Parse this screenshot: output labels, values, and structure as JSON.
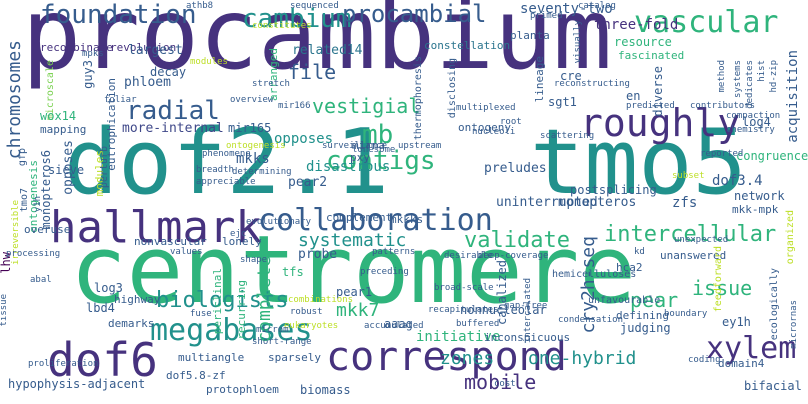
{
  "words": [
    "procambium",
    "dof2.1",
    "tmo5",
    "centromere",
    "correspond",
    "dof6",
    "hallmark",
    "collaboration",
    "roughly",
    "foundation",
    "cambium",
    "procambial",
    "vascular",
    "megabases",
    "biologists",
    "contigs",
    "xylem",
    "validate",
    "intercellular",
    "radial",
    "mb",
    "chromosomes",
    "mobile",
    "issue",
    "complete",
    "systematic",
    "file",
    "vestigial",
    "mkk7",
    "pear",
    "zones",
    "one-hybrid",
    "cry2h-seq",
    "recombinase",
    "revolution",
    "seventy-two",
    "three-fold",
    "resource",
    "fascinated",
    "constellation",
    "related14",
    "largest",
    "phloem",
    "decay",
    "more-internal",
    "wox14",
    "mapping",
    "sieve",
    "monopteros6",
    "mkks",
    "opposes",
    "disastrous",
    "pear2",
    "mir165",
    "preludes",
    "dof3.4",
    "zfs",
    "network",
    "mkk-mpk",
    "congruence",
    "log4",
    "acquisition",
    "sgt1",
    "en",
    "cre",
    "diverse",
    "lineage",
    "planta",
    "probe",
    "complement",
    "mkkks",
    "tfs",
    "hca2",
    "unanswered",
    "log3",
    "lbd4",
    "highway",
    "demarks",
    "multiangle",
    "sparsely",
    "nonnucleolar",
    "initiative",
    "pear1",
    "aaag",
    "judging",
    "defining",
    "ey1h",
    "bifacial",
    "hypophysis-adjacent",
    "dof5.8-zf",
    "protophloem",
    "biomass",
    "domain4",
    "overuse",
    "lonely",
    "nonvascular",
    "eutrophication",
    "tmo7",
    "guy3",
    "monopteros",
    "uninterrupted",
    "canalized",
    "postsplicing",
    "periclinal",
    "recurring",
    "arranged",
    "mirna",
    "pxy",
    "lhw",
    "inconspicuous",
    "hemicelluloses",
    "unfavourable",
    "ontogeny",
    "mpks",
    "foliar",
    "microscale",
    "overview",
    "mir166",
    "surveillance",
    "lonesome",
    "upstream",
    "multiplexed",
    "nucleoli",
    "scattering",
    "chemistry",
    "compaction",
    "predicted",
    "contributors",
    "processing",
    "values",
    "patterns",
    "preceding",
    "broad-scale",
    "intercalated",
    "condensation",
    "boundary",
    "coding",
    "ecologically",
    "organized",
    "micrornas",
    "buffered",
    "recapitulates",
    "eukaryotes",
    "accumulated",
    "short-range",
    "microm",
    "fuse",
    "robust",
    "combinations",
    "evolutionary",
    "ejc",
    "y1h",
    "gfp",
    "perturb",
    "phenomena",
    "breadth",
    "determining",
    "ontogenesis",
    "modules",
    "stretch",
    "athb8",
    "sequenced",
    "catalog",
    "constitutes",
    "thermophoresis",
    "disclosing",
    "reconstructing",
    "desirable",
    "irreversible",
    "deep-coverage",
    "gap-free",
    "feedforward",
    "unexpected",
    "kd",
    "subset",
    "proliferation",
    "abal",
    "cost",
    "shape",
    "primed",
    "root",
    "method",
    "hd-zip",
    "dedicates",
    "hist",
    "systems",
    "visually",
    "appreciable",
    "tissue",
    "reported",
    "cell",
    "abundance",
    "iii",
    "nmd",
    "moderate"
  ]
}
